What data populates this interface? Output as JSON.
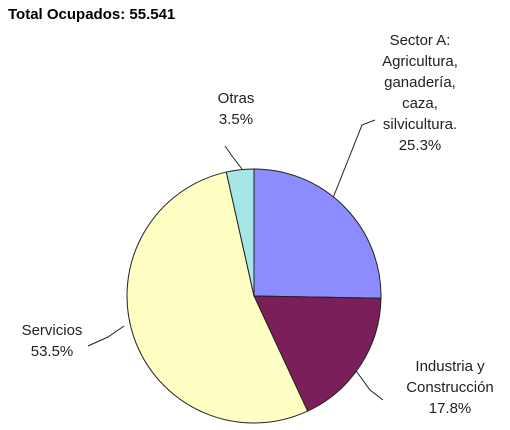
{
  "chart_data": {
    "type": "pie",
    "title": "Total Ocupados: 55.541",
    "categories": [
      "Sector A:\nAgricultura,\nganadería,\ncaza,\nsilvicultura.",
      "Industria y\nConstrucción",
      "Servicios",
      "Otras"
    ],
    "values": [
      25.3,
      17.8,
      53.5,
      3.5
    ],
    "value_labels": [
      "25.3%",
      "17.8%",
      "53.5%",
      "3.5%"
    ],
    "colors": [
      "#8c8cff",
      "#7b1f5a",
      "#ffffc4",
      "#a6e6e6"
    ]
  }
}
